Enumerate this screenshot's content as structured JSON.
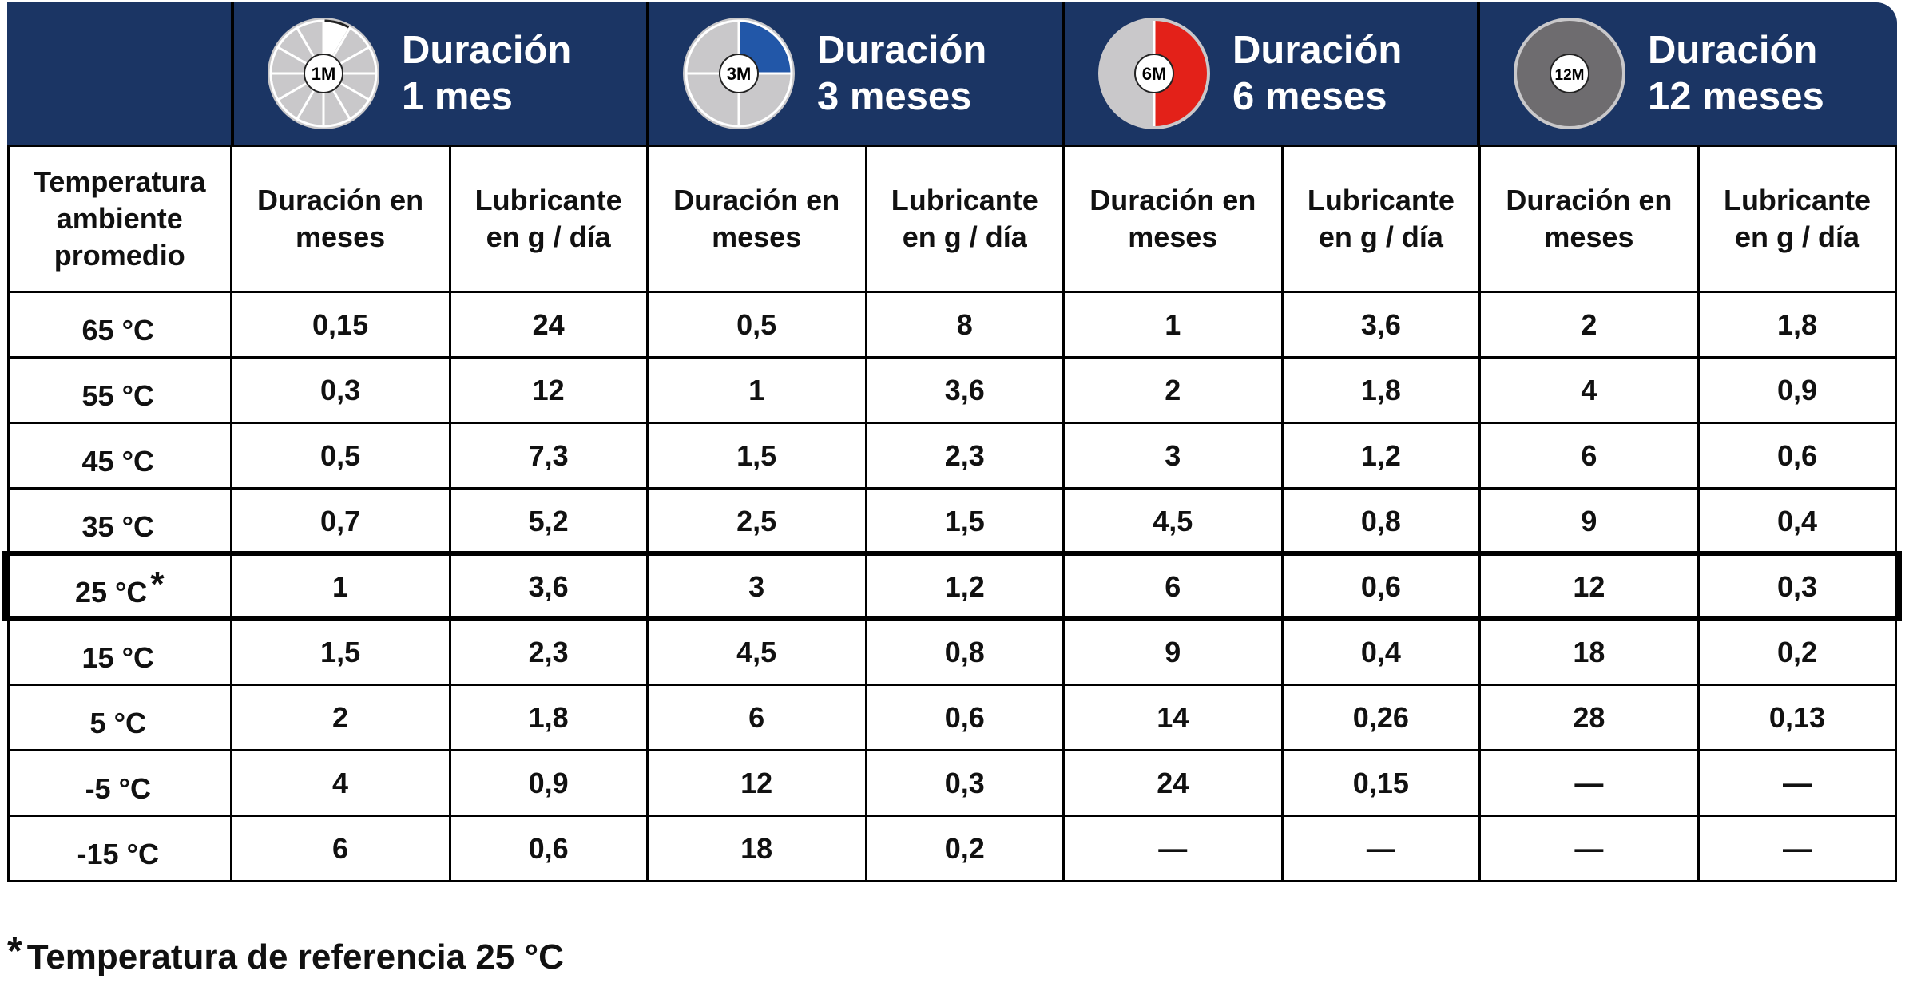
{
  "header": {
    "groups": [
      {
        "badge": "1M",
        "title_line1": "Duración",
        "title_line2": "1 mes",
        "accent": "#ffffff"
      },
      {
        "badge": "3M",
        "title_line1": "Duración",
        "title_line2": "3 meses",
        "accent": "#2257a8"
      },
      {
        "badge": "6M",
        "title_line1": "Duración",
        "title_line2": "6 meses",
        "accent": "#e32119"
      },
      {
        "badge": "12M",
        "title_line1": "Duración",
        "title_line2": "12 meses",
        "accent": "#6e6c6f"
      }
    ]
  },
  "subheader": {
    "temperature": "Temperatura ambiente promedio",
    "duration": "Duración en meses",
    "lubricant": "Lubricante en g / día"
  },
  "rows": [
    {
      "temp": "65 °C",
      "star": "",
      "values": [
        "0,15",
        "24",
        "0,5",
        "8",
        "1",
        "3,6",
        "2",
        "1,8"
      ]
    },
    {
      "temp": "55 °C",
      "star": "",
      "values": [
        "0,3",
        "12",
        "1",
        "3,6",
        "2",
        "1,8",
        "4",
        "0,9"
      ]
    },
    {
      "temp": "45 °C",
      "star": "",
      "values": [
        "0,5",
        "7,3",
        "1,5",
        "2,3",
        "3",
        "1,2",
        "6",
        "0,6"
      ]
    },
    {
      "temp": "35 °C",
      "star": "",
      "values": [
        "0,7",
        "5,2",
        "2,5",
        "1,5",
        "4,5",
        "0,8",
        "9",
        "0,4"
      ]
    },
    {
      "temp": "25 °C",
      "star": "*",
      "values": [
        "1",
        "3,6",
        "3",
        "1,2",
        "6",
        "0,6",
        "12",
        "0,3"
      ]
    },
    {
      "temp": "15 °C",
      "star": "",
      "values": [
        "1,5",
        "2,3",
        "4,5",
        "0,8",
        "9",
        "0,4",
        "18",
        "0,2"
      ]
    },
    {
      "temp": "5 °C",
      "star": "",
      "values": [
        "2",
        "1,8",
        "6",
        "0,6",
        "14",
        "0,26",
        "28",
        "0,13"
      ]
    },
    {
      "temp": "-5 °C",
      "star": "",
      "values": [
        "4",
        "0,9",
        "12",
        "0,3",
        "24",
        "0,15",
        "—",
        "—"
      ]
    },
    {
      "temp": "-15 °C",
      "star": "",
      "values": [
        "6",
        "0,6",
        "18",
        "0,2",
        "—",
        "—",
        "—",
        "—"
      ]
    }
  ],
  "highlight_row": 4,
  "footnote": {
    "star": "*",
    "text": "Temperatura de referencia 25 °C"
  }
}
